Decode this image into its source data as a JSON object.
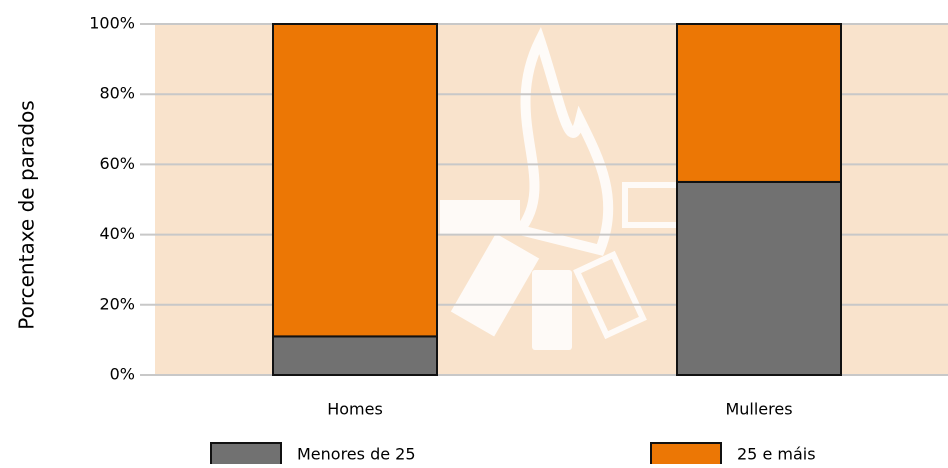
{
  "chart_data": {
    "type": "stacked_bar",
    "y_label": "Porcentaxe de parados",
    "categories": [
      "Homes",
      "Mulleres"
    ],
    "series": [
      {
        "name": "Menores de 25",
        "color": "#717171",
        "values": [
          11,
          55
        ]
      },
      {
        "name": "25 e máis",
        "color": "#ec7705",
        "values": [
          89,
          45
        ]
      }
    ],
    "ylim": [
      0,
      100
    ],
    "yticks": [
      {
        "value": 0,
        "label": "0%"
      },
      {
        "value": 20,
        "label": "20%"
      },
      {
        "value": 40,
        "label": "40%"
      },
      {
        "value": 60,
        "label": "60%"
      },
      {
        "value": 80,
        "label": "80%"
      },
      {
        "value": 100,
        "label": "100%"
      }
    ],
    "grid": true,
    "legend": "bottom",
    "background": "#f9e3cc"
  }
}
